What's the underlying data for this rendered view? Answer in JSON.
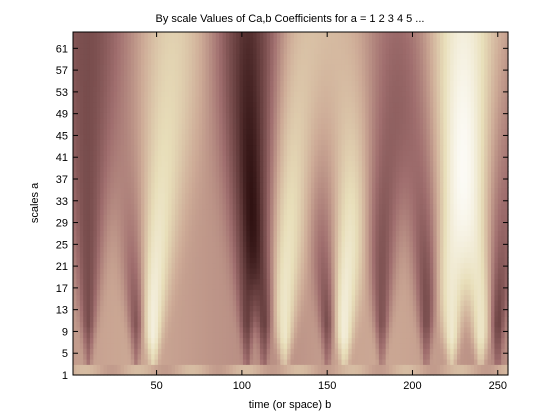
{
  "chart_data": {
    "type": "heatmap",
    "title": "By scale Values of Ca,b Coefficients for a =  1 2 3 4 5 ...",
    "xlabel": "time (or space) b",
    "ylabel": "scales a",
    "xlim": [
      1,
      256
    ],
    "ylim": [
      1,
      64
    ],
    "x_ticks": [
      50,
      100,
      150,
      200,
      250
    ],
    "y_ticks": [
      1,
      5,
      9,
      13,
      17,
      21,
      25,
      29,
      33,
      37,
      41,
      45,
      49,
      53,
      57,
      61
    ],
    "colormap": "pink (bone-like: dark brown to pale yellow-white)",
    "grid": false,
    "legend": "none",
    "dark_cone_centers_b": [
      10,
      38,
      103,
      113,
      150,
      182,
      208,
      250
    ],
    "light_cone_centers_b": [
      48,
      125,
      160,
      223,
      240
    ]
  }
}
